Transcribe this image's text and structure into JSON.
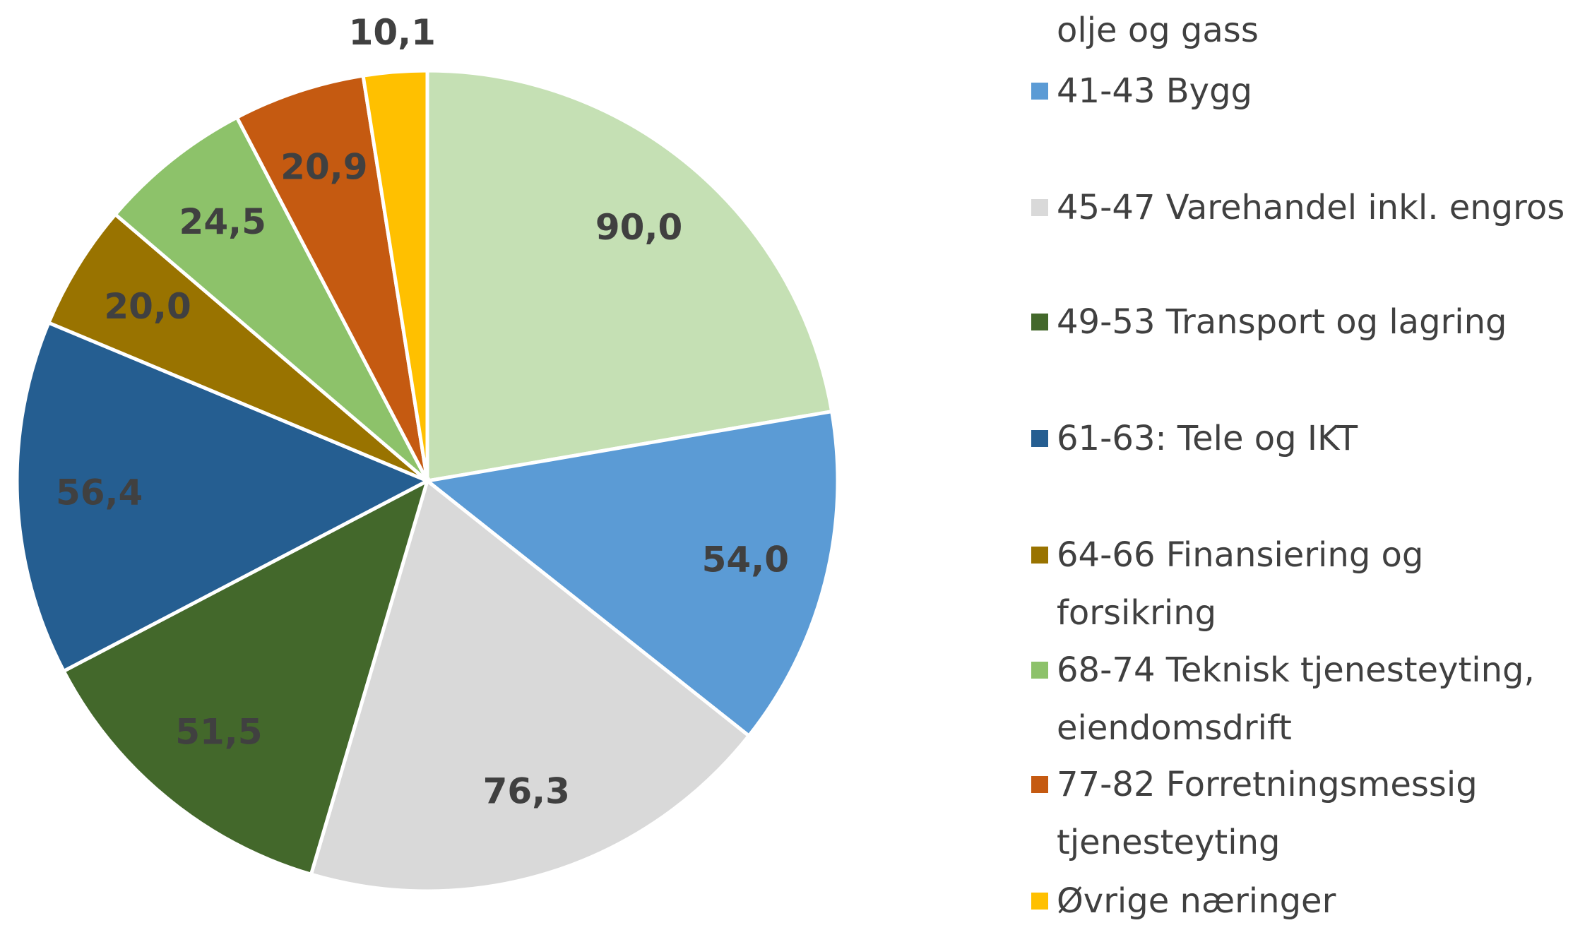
{
  "chart_data": {
    "type": "pie",
    "series": [
      {
        "name": "olje og gass",
        "color": "#c5e0b4",
        "values": [
          90.0
        ],
        "value_labels": [
          "90,0"
        ]
      },
      {
        "name": "41-43 Bygg",
        "color": "#5b9bd5",
        "values": [
          54.0
        ],
        "value_labels": [
          "54,0"
        ]
      },
      {
        "name": "45-47 Varehandel inkl. engros",
        "color": "#d9d9d9",
        "values": [
          76.3
        ],
        "value_labels": [
          "76,3"
        ]
      },
      {
        "name": "49-53 Transport og lagring",
        "color": "#43682b",
        "values": [
          51.5
        ],
        "value_labels": [
          "51,5"
        ]
      },
      {
        "name": "61-63: Tele og IKT",
        "color": "#255e91",
        "values": [
          56.4
        ],
        "value_labels": [
          "56,4"
        ]
      },
      {
        "name": "64-66 Finansiering og forsikring",
        "color": "#997300",
        "values": [
          20.0
        ],
        "value_labels": [
          "20,0"
        ]
      },
      {
        "name": "68-74 Teknisk tjenesteyting, eiendomsdrift",
        "color": "#8dc26a",
        "values": [
          24.5
        ],
        "value_labels": [
          "24,5"
        ]
      },
      {
        "name": "77-82 Forretningsmessig tjenesteyting",
        "color": "#c55a11",
        "values": [
          20.9
        ],
        "value_labels": [
          "20,9"
        ]
      },
      {
        "name": "Øvrige næringer",
        "color": "#ffc000",
        "values": [
          10.1
        ],
        "value_labels": [
          "10,1"
        ]
      }
    ]
  }
}
